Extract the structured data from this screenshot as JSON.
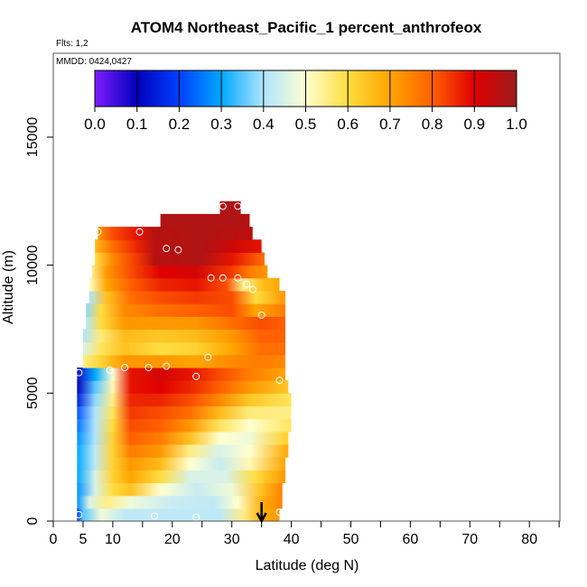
{
  "chart_data": {
    "type": "heatmap",
    "title": "ATOM4 Northeast_Pacific_1 percent_anthrofeox",
    "flights_label": "Flts: 1,2",
    "date_label": "MMDD: 0424,0427",
    "xlabel": "Latitude (deg N)",
    "ylabel": "Altitude (m)",
    "xlim": [
      0,
      85
    ],
    "ylim": [
      0,
      17500
    ],
    "x_ticks": [
      0,
      5,
      10,
      20,
      30,
      40,
      50,
      60,
      70,
      80
    ],
    "x_minor_ticks": [
      15,
      25,
      35,
      45,
      55,
      65,
      75,
      85
    ],
    "y_ticks": [
      0,
      5000,
      10000,
      15000
    ],
    "colorbar": {
      "min": 0.0,
      "max": 1.0,
      "tick_labels": [
        "0.0",
        "0.1",
        "0.2",
        "0.3",
        "0.4",
        "0.5",
        "0.6",
        "0.7",
        "0.8",
        "0.9",
        "1.0"
      ],
      "colors": [
        "#7f1dff",
        "#0000bb",
        "#0040ff",
        "#00a8ff",
        "#b0e4ff",
        "#ffffd0",
        "#ffdd40",
        "#ffa500",
        "#ff6000",
        "#e00000",
        "#9b1c1c"
      ]
    },
    "lat_marker": 35,
    "rows": [
      {
        "alt": 250,
        "lat": [
          4.0,
          38.0
        ],
        "stops": [
          [
            4,
            0.18
          ],
          [
            5,
            0.35
          ],
          [
            8,
            0.48
          ],
          [
            12,
            0.42
          ],
          [
            20,
            0.42
          ],
          [
            28,
            0.42
          ],
          [
            32,
            0.55
          ],
          [
            35,
            0.68
          ],
          [
            38,
            0.72
          ]
        ]
      },
      {
        "alt": 750,
        "lat": [
          4.0,
          38.5
        ],
        "stops": [
          [
            4,
            0.28
          ],
          [
            6,
            0.45
          ],
          [
            9,
            0.55
          ],
          [
            13,
            0.48
          ],
          [
            20,
            0.43
          ],
          [
            27,
            0.42
          ],
          [
            31,
            0.5
          ],
          [
            35,
            0.68
          ],
          [
            38,
            0.74
          ]
        ]
      },
      {
        "alt": 1250,
        "lat": [
          4.0,
          38.5
        ],
        "stops": [
          [
            4,
            0.28
          ],
          [
            7,
            0.45
          ],
          [
            10,
            0.6
          ],
          [
            13,
            0.65
          ],
          [
            18,
            0.5
          ],
          [
            24,
            0.43
          ],
          [
            30,
            0.48
          ],
          [
            35,
            0.65
          ],
          [
            38,
            0.74
          ]
        ]
      },
      {
        "alt": 1750,
        "lat": [
          4.0,
          39.0
        ],
        "stops": [
          [
            4,
            0.3
          ],
          [
            7,
            0.45
          ],
          [
            10,
            0.62
          ],
          [
            13,
            0.7
          ],
          [
            18,
            0.6
          ],
          [
            23,
            0.45
          ],
          [
            29,
            0.45
          ],
          [
            34,
            0.6
          ],
          [
            39,
            0.72
          ]
        ]
      },
      {
        "alt": 2250,
        "lat": [
          4.0,
          39.0
        ],
        "stops": [
          [
            4,
            0.3
          ],
          [
            7,
            0.42
          ],
          [
            10,
            0.62
          ],
          [
            13,
            0.72
          ],
          [
            18,
            0.66
          ],
          [
            23,
            0.5
          ],
          [
            28,
            0.43
          ],
          [
            33,
            0.52
          ],
          [
            39,
            0.7
          ]
        ]
      },
      {
        "alt": 2750,
        "lat": [
          4.0,
          39.5
        ],
        "stops": [
          [
            4,
            0.3
          ],
          [
            7,
            0.42
          ],
          [
            10,
            0.62
          ],
          [
            13,
            0.76
          ],
          [
            18,
            0.72
          ],
          [
            23,
            0.55
          ],
          [
            28,
            0.45
          ],
          [
            33,
            0.5
          ],
          [
            39,
            0.68
          ]
        ]
      },
      {
        "alt": 3250,
        "lat": [
          4.0,
          39.5
        ],
        "stops": [
          [
            4,
            0.28
          ],
          [
            7,
            0.4
          ],
          [
            10,
            0.62
          ],
          [
            13,
            0.8
          ],
          [
            18,
            0.76
          ],
          [
            23,
            0.65
          ],
          [
            28,
            0.5
          ],
          [
            33,
            0.48
          ],
          [
            39,
            0.62
          ]
        ]
      },
      {
        "alt": 3750,
        "lat": [
          4.0,
          40.0
        ],
        "stops": [
          [
            4,
            0.25
          ],
          [
            7,
            0.4
          ],
          [
            10,
            0.6
          ],
          [
            13,
            0.82
          ],
          [
            18,
            0.8
          ],
          [
            23,
            0.72
          ],
          [
            28,
            0.58
          ],
          [
            33,
            0.5
          ],
          [
            40,
            0.58
          ]
        ]
      },
      {
        "alt": 4250,
        "lat": [
          4.0,
          40.0
        ],
        "stops": [
          [
            4,
            0.22
          ],
          [
            7,
            0.4
          ],
          [
            10,
            0.58
          ],
          [
            13,
            0.84
          ],
          [
            18,
            0.82
          ],
          [
            23,
            0.78
          ],
          [
            28,
            0.66
          ],
          [
            33,
            0.56
          ],
          [
            40,
            0.55
          ]
        ]
      },
      {
        "alt": 4750,
        "lat": [
          4.0,
          40.0
        ],
        "stops": [
          [
            4,
            0.15
          ],
          [
            7,
            0.38
          ],
          [
            10,
            0.55
          ],
          [
            13,
            0.86
          ],
          [
            18,
            0.86
          ],
          [
            23,
            0.82
          ],
          [
            28,
            0.74
          ],
          [
            33,
            0.64
          ],
          [
            40,
            0.58
          ]
        ]
      },
      {
        "alt": 5250,
        "lat": [
          4.0,
          39.5
        ],
        "stops": [
          [
            4,
            0.1
          ],
          [
            7,
            0.35
          ],
          [
            10,
            0.52
          ],
          [
            13,
            0.88
          ],
          [
            18,
            0.9
          ],
          [
            23,
            0.86
          ],
          [
            28,
            0.8
          ],
          [
            33,
            0.72
          ],
          [
            39.5,
            0.64
          ]
        ]
      },
      {
        "alt": 5750,
        "lat": [
          4.0,
          39.0
        ],
        "stops": [
          [
            4,
            0.08
          ],
          [
            7,
            0.3
          ],
          [
            10,
            0.5
          ],
          [
            13,
            0.88
          ],
          [
            18,
            0.92
          ],
          [
            23,
            0.88
          ],
          [
            28,
            0.82
          ],
          [
            33,
            0.76
          ],
          [
            39,
            0.7
          ]
        ]
      },
      {
        "alt": 6250,
        "lat": [
          5.0,
          39.0
        ],
        "stops": [
          [
            5,
            0.55
          ],
          [
            8,
            0.62
          ],
          [
            12,
            0.72
          ],
          [
            18,
            0.72
          ],
          [
            24,
            0.7
          ],
          [
            30,
            0.74
          ],
          [
            35,
            0.76
          ],
          [
            39,
            0.74
          ]
        ]
      },
      {
        "alt": 6750,
        "lat": [
          5.0,
          39.0
        ],
        "stops": [
          [
            5,
            0.45
          ],
          [
            8,
            0.58
          ],
          [
            12,
            0.65
          ],
          [
            18,
            0.6
          ],
          [
            24,
            0.62
          ],
          [
            30,
            0.7
          ],
          [
            35,
            0.78
          ],
          [
            39,
            0.78
          ]
        ]
      },
      {
        "alt": 7250,
        "lat": [
          5.0,
          39.0
        ],
        "stops": [
          [
            5,
            0.4
          ],
          [
            8,
            0.56
          ],
          [
            12,
            0.66
          ],
          [
            18,
            0.64
          ],
          [
            24,
            0.66
          ],
          [
            30,
            0.72
          ],
          [
            35,
            0.8
          ],
          [
            39,
            0.8
          ]
        ]
      },
      {
        "alt": 7750,
        "lat": [
          5.5,
          39.0
        ],
        "stops": [
          [
            5.5,
            0.4
          ],
          [
            8,
            0.6
          ],
          [
            12,
            0.72
          ],
          [
            18,
            0.72
          ],
          [
            24,
            0.72
          ],
          [
            30,
            0.78
          ],
          [
            35,
            0.82
          ],
          [
            39,
            0.8
          ]
        ]
      },
      {
        "alt": 8250,
        "lat": [
          5.5,
          39.0
        ],
        "stops": [
          [
            5.5,
            0.38
          ],
          [
            8,
            0.6
          ],
          [
            12,
            0.74
          ],
          [
            18,
            0.78
          ],
          [
            24,
            0.8
          ],
          [
            30,
            0.82
          ],
          [
            34,
            0.7
          ],
          [
            39,
            0.76
          ]
        ]
      },
      {
        "alt": 8750,
        "lat": [
          6.0,
          39.0
        ],
        "stops": [
          [
            6,
            0.4
          ],
          [
            9,
            0.65
          ],
          [
            13,
            0.78
          ],
          [
            18,
            0.82
          ],
          [
            24,
            0.84
          ],
          [
            30,
            0.82
          ],
          [
            34,
            0.6
          ],
          [
            39,
            0.72
          ]
        ]
      },
      {
        "alt": 9250,
        "lat": [
          6.0,
          38.0
        ],
        "stops": [
          [
            6,
            0.5
          ],
          [
            9,
            0.7
          ],
          [
            13,
            0.8
          ],
          [
            18,
            0.86
          ],
          [
            24,
            0.88
          ],
          [
            29,
            0.82
          ],
          [
            32,
            0.55
          ],
          [
            35,
            0.65
          ],
          [
            38,
            0.7
          ]
        ]
      },
      {
        "alt": 9750,
        "lat": [
          6.5,
          36.0
        ],
        "stops": [
          [
            6.5,
            0.55
          ],
          [
            9,
            0.72
          ],
          [
            13,
            0.82
          ],
          [
            18,
            0.9
          ],
          [
            24,
            0.92
          ],
          [
            30,
            0.84
          ],
          [
            33,
            0.76
          ],
          [
            36,
            0.72
          ]
        ]
      },
      {
        "alt": 10250,
        "lat": [
          7.0,
          35.5
        ],
        "stops": [
          [
            7,
            0.6
          ],
          [
            10,
            0.74
          ],
          [
            14,
            0.84
          ],
          [
            17,
            0.96
          ],
          [
            25,
            0.97
          ],
          [
            30,
            0.88
          ],
          [
            35.5,
            0.78
          ]
        ]
      },
      {
        "alt": 10750,
        "lat": [
          7.0,
          35.0
        ],
        "stops": [
          [
            7,
            0.66
          ],
          [
            10,
            0.78
          ],
          [
            14,
            0.86
          ],
          [
            17,
            0.96
          ],
          [
            25,
            0.97
          ],
          [
            30,
            0.93
          ],
          [
            35,
            0.88
          ]
        ]
      },
      {
        "alt": 11250,
        "lat": [
          7.5,
          33.5
        ],
        "stops": [
          [
            7.5,
            0.72
          ],
          [
            10,
            0.82
          ],
          [
            14,
            0.88
          ],
          [
            17,
            0.96
          ],
          [
            25,
            0.97
          ],
          [
            30,
            0.96
          ],
          [
            33.5,
            0.95
          ]
        ]
      },
      {
        "alt": 11750,
        "lat": [
          18.0,
          33.0
        ],
        "stops": [
          [
            18,
            0.97
          ],
          [
            33,
            0.97
          ]
        ]
      },
      {
        "alt": 12250,
        "lat": [
          28.0,
          31.5
        ],
        "stops": [
          [
            28,
            0.97
          ],
          [
            31.5,
            0.97
          ]
        ]
      }
    ],
    "points": [
      [
        4.3,
        5800
      ],
      [
        4.3,
        250
      ],
      [
        7.5,
        11300
      ],
      [
        14.5,
        11300
      ],
      [
        19,
        10650
      ],
      [
        21,
        10600
      ],
      [
        26.5,
        9500
      ],
      [
        28.5,
        9500
      ],
      [
        31,
        9500
      ],
      [
        32.5,
        9250
      ],
      [
        33.5,
        9050
      ],
      [
        28.5,
        12300
      ],
      [
        31,
        12300
      ],
      [
        35,
        8050
      ],
      [
        26,
        6400
      ],
      [
        24,
        5650
      ],
      [
        9.5,
        5900
      ],
      [
        12,
        6000
      ],
      [
        16,
        6000
      ],
      [
        19,
        6050
      ],
      [
        38,
        5500
      ],
      [
        38,
        350
      ],
      [
        17,
        200
      ],
      [
        24,
        150
      ]
    ]
  }
}
